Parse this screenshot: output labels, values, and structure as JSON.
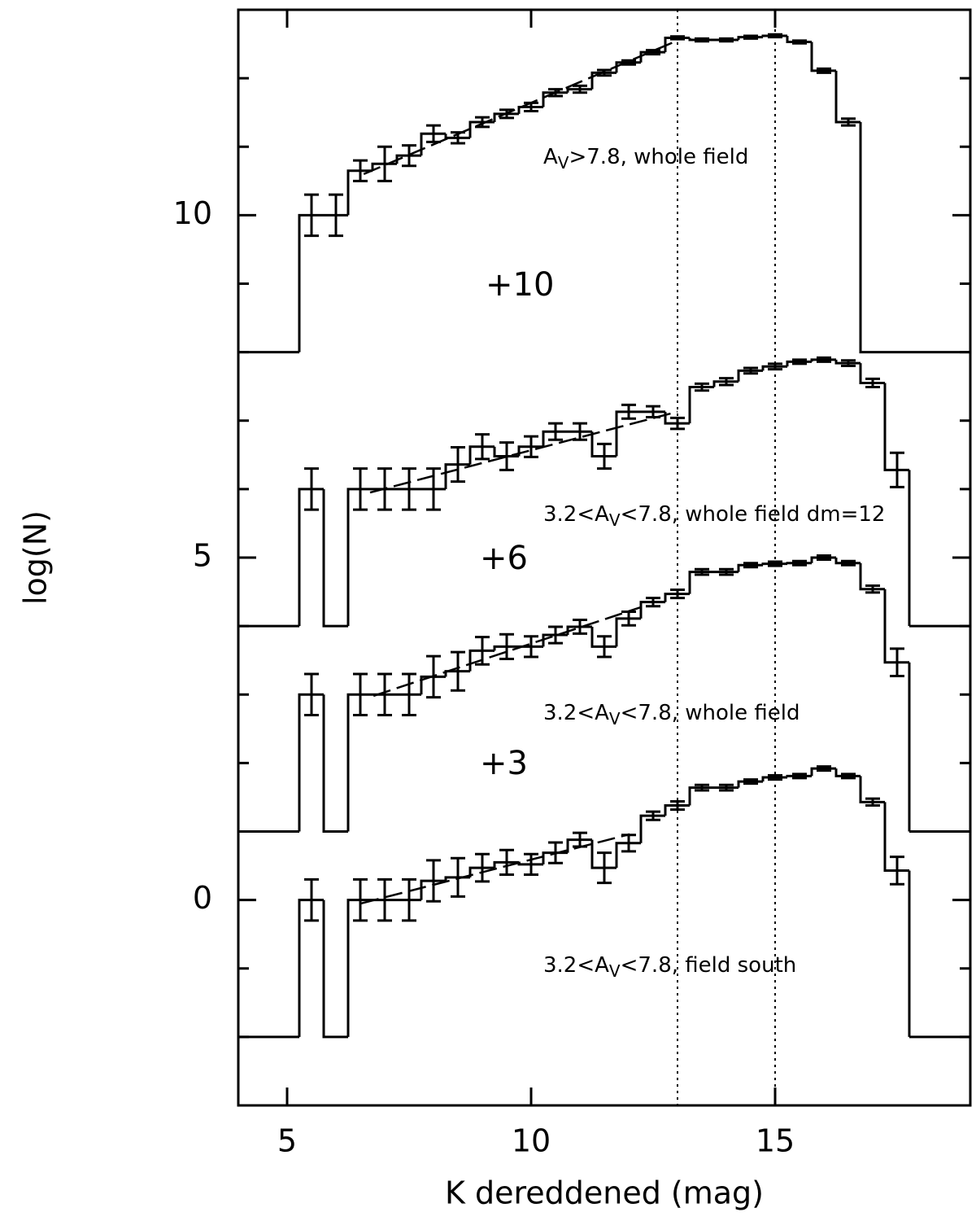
{
  "chart_data": {
    "type": "histogram",
    "xlabel": "K dereddened (mag)",
    "ylabel": "log(N)",
    "xlim": [
      4,
      19
    ],
    "ylim": [
      -3,
      13
    ],
    "xticks": [
      5,
      10,
      15
    ],
    "yticks": [
      0,
      5,
      10
    ],
    "yminorticks": [
      -2,
      -1,
      1,
      2,
      3,
      4,
      6,
      7,
      8,
      9,
      11,
      12
    ],
    "vlines": [
      13,
      15
    ],
    "bins": [
      5.25,
      5.75,
      6.25,
      6.75,
      7.25,
      7.75,
      8.25,
      8.75,
      9.25,
      9.75,
      10.25,
      10.75,
      11.25,
      11.75,
      12.25,
      12.75,
      13.25,
      13.75,
      14.25,
      14.75,
      15.25,
      15.75,
      16.25,
      16.75,
      17.25,
      17.75
    ],
    "series": [
      {
        "color": "#000000",
        "baseline": 8,
        "offset_label": "+10",
        "annotation": {
          "prefix": "A",
          "sub": "V",
          "suffix": ">7.8, whole field"
        },
        "values": [
          10.0,
          10.0,
          10.65,
          10.75,
          10.87,
          11.19,
          11.13,
          11.36,
          11.48,
          11.58,
          11.79,
          11.84,
          12.08,
          12.23,
          12.38,
          12.59,
          12.56,
          12.56,
          12.6,
          12.62,
          12.53,
          12.11,
          11.36,
          null,
          null
        ],
        "errors": [
          0.3,
          0.3,
          0.15,
          0.25,
          0.15,
          0.12,
          0.08,
          0.07,
          0.06,
          0.06,
          0.05,
          0.05,
          0.04,
          0.03,
          0.03,
          0.02,
          0.02,
          0.02,
          0.02,
          0.02,
          0.02,
          0.03,
          0.05,
          null,
          null
        ],
        "fit": {
          "x": [
            6.57,
            12.93
          ],
          "y": [
            10.6,
            12.53
          ]
        }
      },
      {
        "color": "#000000",
        "baseline": 4,
        "offset_label": "+6",
        "annotation": {
          "prefix": "3.2<A",
          "sub": "V",
          "suffix": "<7.8, whole field dm=12"
        },
        "values": [
          6.0,
          null,
          6.0,
          6.0,
          6.0,
          6.0,
          6.36,
          6.62,
          6.48,
          6.62,
          6.84,
          6.84,
          6.48,
          7.13,
          7.13,
          6.96,
          7.49,
          7.57,
          7.73,
          7.79,
          7.86,
          7.89,
          7.84,
          7.55,
          6.28
        ],
        "errors": [
          0.3,
          null,
          0.3,
          0.3,
          0.3,
          0.3,
          0.25,
          0.18,
          0.2,
          0.15,
          0.12,
          0.12,
          0.18,
          0.1,
          0.08,
          0.08,
          0.05,
          0.05,
          0.04,
          0.04,
          0.03,
          0.03,
          0.04,
          0.06,
          0.25
        ],
        "fit": {
          "x": [
            6.7,
            13.0
          ],
          "y": [
            5.95,
            7.13
          ]
        }
      },
      {
        "color": "#000000",
        "baseline": 1,
        "offset_label": "+3",
        "annotation": {
          "prefix": "3.2<A",
          "sub": "V",
          "suffix": "<7.8, whole field"
        },
        "values": [
          3.0,
          null,
          3.0,
          3.0,
          3.0,
          3.26,
          3.34,
          3.64,
          3.7,
          3.7,
          3.87,
          3.99,
          3.7,
          4.11,
          4.35,
          4.47,
          4.79,
          4.79,
          4.89,
          4.91,
          4.92,
          5.0,
          4.92,
          4.54,
          3.47
        ],
        "errors": [
          0.3,
          null,
          0.3,
          0.3,
          0.3,
          0.3,
          0.28,
          0.2,
          0.18,
          0.15,
          0.12,
          0.1,
          0.15,
          0.1,
          0.06,
          0.06,
          0.04,
          0.04,
          0.03,
          0.03,
          0.03,
          0.03,
          0.03,
          0.05,
          0.2
        ],
        "fit": {
          "x": [
            6.77,
            12.27
          ],
          "y": [
            2.98,
            4.28
          ]
        }
      },
      {
        "color": "#000000",
        "baseline": -2,
        "offset_label": null,
        "annotation": {
          "prefix": "3.2<A",
          "sub": "V",
          "suffix": "<7.8, field south"
        },
        "values": [
          0.0,
          null,
          0.0,
          0.0,
          0.0,
          0.28,
          0.33,
          0.47,
          0.55,
          0.52,
          0.69,
          0.88,
          0.47,
          0.83,
          1.23,
          1.38,
          1.64,
          1.64,
          1.73,
          1.79,
          1.81,
          1.92,
          1.81,
          1.43,
          0.43
        ],
        "errors": [
          0.3,
          null,
          0.3,
          0.3,
          0.3,
          0.3,
          0.28,
          0.2,
          0.18,
          0.15,
          0.15,
          0.1,
          0.22,
          0.12,
          0.06,
          0.06,
          0.04,
          0.04,
          0.03,
          0.03,
          0.03,
          0.03,
          0.03,
          0.05,
          0.2
        ],
        "fit": {
          "x": [
            6.52,
            12.02
          ],
          "y": [
            -0.05,
            0.96
          ]
        }
      }
    ]
  }
}
